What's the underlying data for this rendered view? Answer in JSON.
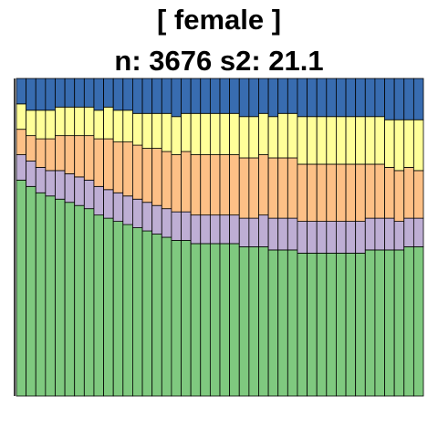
{
  "title": "[ female ]",
  "subtitle": "n: 3676 s2: 21.1",
  "colors": {
    "categories": [
      "#7fc97f",
      "#beaed4",
      "#fdc086",
      "#ffff99",
      "#386cb0"
    ],
    "outline": "#000000"
  },
  "chart_data": {
    "type": "bar",
    "stacked": "proportional",
    "title": "[ female ]",
    "subtitle": "n: 3676 s2: 21.1",
    "xlabel": "",
    "ylabel": "",
    "ylim": [
      0,
      1
    ],
    "grid": false,
    "legend": "none",
    "bar_count": 42,
    "series": [
      {
        "color": "#7fc97f",
        "values": [
          0.68,
          0.66,
          0.64,
          0.63,
          0.62,
          0.61,
          0.6,
          0.59,
          0.57,
          0.56,
          0.55,
          0.54,
          0.53,
          0.52,
          0.51,
          0.5,
          0.49,
          0.49,
          0.48,
          0.48,
          0.48,
          0.48,
          0.48,
          0.47,
          0.47,
          0.47,
          0.46,
          0.46,
          0.46,
          0.45,
          0.45,
          0.45,
          0.45,
          0.45,
          0.45,
          0.45,
          0.46,
          0.46,
          0.46,
          0.46,
          0.47,
          0.47
        ]
      },
      {
        "color": "#beaed4",
        "values": [
          0.08,
          0.08,
          0.08,
          0.08,
          0.09,
          0.09,
          0.09,
          0.09,
          0.09,
          0.09,
          0.09,
          0.09,
          0.09,
          0.09,
          0.09,
          0.09,
          0.09,
          0.09,
          0.09,
          0.09,
          0.09,
          0.09,
          0.09,
          0.09,
          0.09,
          0.1,
          0.1,
          0.1,
          0.1,
          0.1,
          0.1,
          0.1,
          0.1,
          0.1,
          0.1,
          0.1,
          0.1,
          0.1,
          0.1,
          0.09,
          0.09,
          0.09
        ]
      },
      {
        "color": "#fdc086",
        "values": [
          0.08,
          0.08,
          0.09,
          0.1,
          0.11,
          0.12,
          0.13,
          0.14,
          0.15,
          0.16,
          0.16,
          0.17,
          0.17,
          0.17,
          0.18,
          0.18,
          0.18,
          0.19,
          0.19,
          0.19,
          0.19,
          0.19,
          0.19,
          0.19,
          0.19,
          0.19,
          0.19,
          0.19,
          0.19,
          0.18,
          0.18,
          0.18,
          0.18,
          0.18,
          0.18,
          0.18,
          0.17,
          0.17,
          0.16,
          0.16,
          0.16,
          0.15
        ]
      },
      {
        "color": "#ffff99",
        "values": [
          0.08,
          0.08,
          0.09,
          0.09,
          0.09,
          0.09,
          0.09,
          0.09,
          0.09,
          0.1,
          0.1,
          0.1,
          0.1,
          0.11,
          0.11,
          0.12,
          0.12,
          0.12,
          0.13,
          0.13,
          0.13,
          0.13,
          0.13,
          0.13,
          0.13,
          0.13,
          0.13,
          0.14,
          0.14,
          0.15,
          0.15,
          0.15,
          0.15,
          0.15,
          0.15,
          0.15,
          0.15,
          0.15,
          0.15,
          0.16,
          0.15,
          0.16
        ]
      },
      {
        "color": "#386cb0",
        "values": [
          0.08,
          0.1,
          0.1,
          0.1,
          0.09,
          0.09,
          0.09,
          0.09,
          0.1,
          0.09,
          0.1,
          0.1,
          0.11,
          0.11,
          0.11,
          0.11,
          0.12,
          0.11,
          0.11,
          0.11,
          0.11,
          0.11,
          0.11,
          0.12,
          0.12,
          0.11,
          0.12,
          0.11,
          0.11,
          0.12,
          0.12,
          0.12,
          0.12,
          0.12,
          0.12,
          0.12,
          0.12,
          0.12,
          0.13,
          0.13,
          0.13,
          0.13
        ]
      }
    ]
  }
}
